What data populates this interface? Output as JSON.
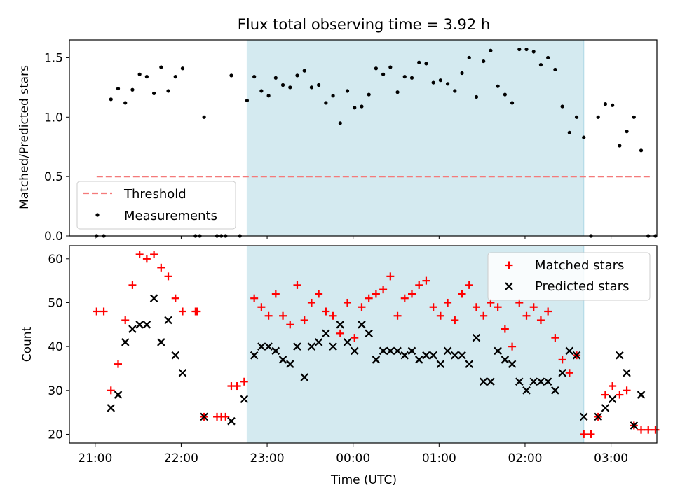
{
  "title": "Flux total observing time = 3.92 h",
  "xlabel": "Time (UTC)",
  "xticks": [
    "21:00",
    "22:00",
    "23:00",
    "00:00",
    "01:00",
    "02:00",
    "03:00"
  ],
  "colors": {
    "shade": "#d4eaf0",
    "shade_edge": "#add8e6",
    "threshold": "#f47a7a",
    "measurements": "#000000",
    "matched": "#ff0000",
    "predicted": "#000000"
  },
  "chart_data": [
    {
      "type": "scatter",
      "ylabel": "Matched/Predicted stars",
      "xlim": [
        "20:42",
        "03:32"
      ],
      "ylim": [
        0,
        1.65
      ],
      "yticks": [
        "0.0",
        "0.5",
        "1.0",
        "1.5"
      ],
      "shaded_span": [
        "22:46",
        "02:41"
      ],
      "legend": {
        "placement": "bottom-left",
        "entries": [
          "Threshold",
          "Measurements"
        ]
      },
      "threshold": {
        "name": "Threshold",
        "y": 0.5,
        "x": [
          "21:01",
          "03:29"
        ]
      },
      "series": [
        {
          "name": "Measurements",
          "marker": "dot",
          "points": [
            [
              "21:01",
              0
            ],
            [
              "21:06",
              0
            ],
            [
              "21:11",
              1.15
            ],
            [
              "21:16",
              1.24
            ],
            [
              "21:21",
              1.12
            ],
            [
              "21:26",
              1.23
            ],
            [
              "21:31",
              1.36
            ],
            [
              "21:36",
              1.34
            ],
            [
              "21:41",
              1.2
            ],
            [
              "21:46",
              1.42
            ],
            [
              "21:51",
              1.22
            ],
            [
              "21:56",
              1.34
            ],
            [
              "22:01",
              1.41
            ],
            [
              "22:10",
              0
            ],
            [
              "22:13",
              0
            ],
            [
              "22:16",
              1.0
            ],
            [
              "22:25",
              0
            ],
            [
              "22:28",
              0
            ],
            [
              "22:31",
              0
            ],
            [
              "22:35",
              1.35
            ],
            [
              "22:41",
              0
            ],
            [
              "22:46",
              1.14
            ],
            [
              "22:51",
              1.34
            ],
            [
              "22:56",
              1.22
            ],
            [
              "23:01",
              1.18
            ],
            [
              "23:06",
              1.33
            ],
            [
              "23:11",
              1.27
            ],
            [
              "23:16",
              1.25
            ],
            [
              "23:21",
              1.35
            ],
            [
              "23:26",
              1.39
            ],
            [
              "23:31",
              1.25
            ],
            [
              "23:36",
              1.27
            ],
            [
              "23:41",
              1.12
            ],
            [
              "23:46",
              1.18
            ],
            [
              "23:51",
              0.95
            ],
            [
              "23:56",
              1.22
            ],
            [
              "00:01",
              1.08
            ],
            [
              "00:06",
              1.09
            ],
            [
              "00:11",
              1.19
            ],
            [
              "00:16",
              1.41
            ],
            [
              "00:21",
              1.36
            ],
            [
              "00:26",
              1.42
            ],
            [
              "00:31",
              1.21
            ],
            [
              "00:36",
              1.34
            ],
            [
              "00:41",
              1.33
            ],
            [
              "00:46",
              1.46
            ],
            [
              "00:51",
              1.45
            ],
            [
              "00:56",
              1.29
            ],
            [
              "01:01",
              1.31
            ],
            [
              "01:06",
              1.28
            ],
            [
              "01:11",
              1.22
            ],
            [
              "01:16",
              1.37
            ],
            [
              "01:21",
              1.5
            ],
            [
              "01:26",
              1.17
            ],
            [
              "01:31",
              1.47
            ],
            [
              "01:36",
              1.56
            ],
            [
              "01:41",
              1.26
            ],
            [
              "01:46",
              1.19
            ],
            [
              "01:51",
              1.12
            ],
            [
              "01:56",
              1.57
            ],
            [
              "02:01",
              1.57
            ],
            [
              "02:06",
              1.55
            ],
            [
              "02:11",
              1.44
            ],
            [
              "02:16",
              1.5
            ],
            [
              "02:21",
              1.4
            ],
            [
              "02:26",
              1.09
            ],
            [
              "02:31",
              0.87
            ],
            [
              "02:36",
              1.0
            ],
            [
              "02:41",
              0.83
            ],
            [
              "02:46",
              0
            ],
            [
              "02:51",
              1.0
            ],
            [
              "02:56",
              1.11
            ],
            [
              "03:01",
              1.1
            ],
            [
              "03:06",
              0.76
            ],
            [
              "03:11",
              0.88
            ],
            [
              "03:16",
              1.0
            ],
            [
              "03:21",
              0.72
            ],
            [
              "03:26",
              0
            ],
            [
              "03:31",
              0
            ]
          ]
        }
      ]
    },
    {
      "type": "scatter",
      "ylabel": "Count",
      "xlim": [
        "20:42",
        "03:32"
      ],
      "ylim": [
        18,
        63
      ],
      "yticks": [
        "20",
        "30",
        "40",
        "50",
        "60"
      ],
      "shaded_span": [
        "22:46",
        "02:41"
      ],
      "legend": {
        "placement": "top-right",
        "entries": [
          "Matched stars",
          "Predicted stars"
        ]
      },
      "series": [
        {
          "name": "Matched stars",
          "marker": "plus",
          "points": [
            [
              "21:01",
              48
            ],
            [
              "21:06",
              48
            ],
            [
              "21:11",
              30
            ],
            [
              "21:16",
              36
            ],
            [
              "21:21",
              46
            ],
            [
              "21:26",
              54
            ],
            [
              "21:31",
              61
            ],
            [
              "21:36",
              60
            ],
            [
              "21:41",
              61
            ],
            [
              "21:46",
              58
            ],
            [
              "21:51",
              56
            ],
            [
              "21:56",
              51
            ],
            [
              "22:01",
              48
            ],
            [
              "22:10",
              48
            ],
            [
              "22:11",
              48
            ],
            [
              "22:16",
              24
            ],
            [
              "22:25",
              24
            ],
            [
              "22:28",
              24
            ],
            [
              "22:31",
              24
            ],
            [
              "22:35",
              31
            ],
            [
              "22:39",
              31
            ],
            [
              "22:44",
              32
            ],
            [
              "22:51",
              51
            ],
            [
              "22:56",
              49
            ],
            [
              "23:01",
              47
            ],
            [
              "23:06",
              52
            ],
            [
              "23:11",
              47
            ],
            [
              "23:16",
              45
            ],
            [
              "23:21",
              54
            ],
            [
              "23:26",
              46
            ],
            [
              "23:31",
              50
            ],
            [
              "23:36",
              52
            ],
            [
              "23:41",
              48
            ],
            [
              "23:46",
              47
            ],
            [
              "23:51",
              43
            ],
            [
              "23:56",
              50
            ],
            [
              "00:01",
              42
            ],
            [
              "00:06",
              49
            ],
            [
              "00:11",
              51
            ],
            [
              "00:16",
              52
            ],
            [
              "00:21",
              53
            ],
            [
              "00:26",
              56
            ],
            [
              "00:31",
              47
            ],
            [
              "00:36",
              51
            ],
            [
              "00:41",
              52
            ],
            [
              "00:46",
              54
            ],
            [
              "00:51",
              55
            ],
            [
              "00:56",
              49
            ],
            [
              "01:01",
              47
            ],
            [
              "01:06",
              50
            ],
            [
              "01:11",
              46
            ],
            [
              "01:16",
              52
            ],
            [
              "01:21",
              54
            ],
            [
              "01:26",
              49
            ],
            [
              "01:31",
              47
            ],
            [
              "01:36",
              50
            ],
            [
              "01:41",
              49
            ],
            [
              "01:46",
              44
            ],
            [
              "01:51",
              40
            ],
            [
              "01:56",
              50
            ],
            [
              "02:01",
              47
            ],
            [
              "02:06",
              49
            ],
            [
              "02:11",
              46
            ],
            [
              "02:16",
              48
            ],
            [
              "02:21",
              42
            ],
            [
              "02:26",
              37
            ],
            [
              "02:31",
              34
            ],
            [
              "02:36",
              38
            ],
            [
              "02:41",
              20
            ],
            [
              "02:46",
              20
            ],
            [
              "02:51",
              24
            ],
            [
              "02:56",
              29
            ],
            [
              "03:01",
              31
            ],
            [
              "03:06",
              29
            ],
            [
              "03:11",
              30
            ],
            [
              "03:16",
              22
            ],
            [
              "03:21",
              21
            ],
            [
              "03:26",
              21
            ],
            [
              "03:31",
              21
            ]
          ]
        },
        {
          "name": "Predicted stars",
          "marker": "x",
          "points": [
            [
              "21:11",
              26
            ],
            [
              "21:16",
              29
            ],
            [
              "21:21",
              41
            ],
            [
              "21:26",
              44
            ],
            [
              "21:31",
              45
            ],
            [
              "21:36",
              45
            ],
            [
              "21:41",
              51
            ],
            [
              "21:46",
              41
            ],
            [
              "21:51",
              46
            ],
            [
              "21:56",
              38
            ],
            [
              "22:01",
              34
            ],
            [
              "22:16",
              24
            ],
            [
              "22:35",
              23
            ],
            [
              "22:44",
              28
            ],
            [
              "22:51",
              38
            ],
            [
              "22:56",
              40
            ],
            [
              "23:01",
              40
            ],
            [
              "23:06",
              39
            ],
            [
              "23:11",
              37
            ],
            [
              "23:16",
              36
            ],
            [
              "23:21",
              40
            ],
            [
              "23:26",
              33
            ],
            [
              "23:31",
              40
            ],
            [
              "23:36",
              41
            ],
            [
              "23:41",
              43
            ],
            [
              "23:46",
              40
            ],
            [
              "23:51",
              45
            ],
            [
              "23:56",
              41
            ],
            [
              "00:01",
              39
            ],
            [
              "00:06",
              45
            ],
            [
              "00:11",
              43
            ],
            [
              "00:16",
              37
            ],
            [
              "00:21",
              39
            ],
            [
              "00:26",
              39
            ],
            [
              "00:31",
              39
            ],
            [
              "00:36",
              38
            ],
            [
              "00:41",
              39
            ],
            [
              "00:46",
              37
            ],
            [
              "00:51",
              38
            ],
            [
              "00:56",
              38
            ],
            [
              "01:01",
              36
            ],
            [
              "01:06",
              39
            ],
            [
              "01:11",
              38
            ],
            [
              "01:16",
              38
            ],
            [
              "01:21",
              36
            ],
            [
              "01:26",
              42
            ],
            [
              "01:31",
              32
            ],
            [
              "01:36",
              32
            ],
            [
              "01:41",
              39
            ],
            [
              "01:46",
              37
            ],
            [
              "01:51",
              36
            ],
            [
              "01:56",
              32
            ],
            [
              "02:01",
              30
            ],
            [
              "02:06",
              32
            ],
            [
              "02:11",
              32
            ],
            [
              "02:16",
              32
            ],
            [
              "02:21",
              30
            ],
            [
              "02:26",
              34
            ],
            [
              "02:31",
              39
            ],
            [
              "02:36",
              38
            ],
            [
              "02:41",
              24
            ],
            [
              "02:51",
              24
            ],
            [
              "02:56",
              26
            ],
            [
              "03:01",
              28
            ],
            [
              "03:06",
              38
            ],
            [
              "03:11",
              34
            ],
            [
              "03:16",
              22
            ],
            [
              "03:21",
              29
            ]
          ]
        }
      ]
    }
  ]
}
